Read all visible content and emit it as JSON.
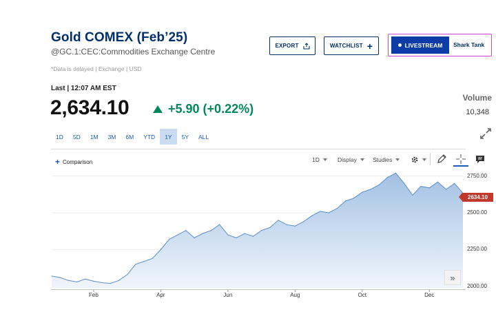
{
  "header": {
    "title": "Gold COMEX (Feb’25)",
    "subtitle": "@GC.1:CEC:Commodities Exchange Centre",
    "delay_note": "*Data is delayed | Exchange | USD"
  },
  "actions": {
    "export_label": "EXPORT",
    "watchlist_label": "WATCHLIST",
    "livestream_label": "LIVESTREAM",
    "show_label": "Shark Tank"
  },
  "quote": {
    "last_label": "Last | 12:07 AM EST",
    "price": "2,634.10",
    "change": "+5.90 (+0.22%)",
    "volume_label": "Volume",
    "volume_value": "10,348"
  },
  "ranges": {
    "items": [
      "1D",
      "5D",
      "1M",
      "3M",
      "6M",
      "YTD",
      "1Y",
      "5Y",
      "ALL"
    ],
    "active": "1Y"
  },
  "toolbar": {
    "comparison_label": "Comparison",
    "interval_label": "1D",
    "display_label": "Display",
    "studies_label": "Studies"
  },
  "colors": {
    "brand": "#002f6c",
    "positive": "#00875a",
    "accent": "#1a5bb8",
    "price_flag": "#c0392b",
    "series_line": "#5b8fc9"
  },
  "chart_data": {
    "type": "area",
    "x": [
      "Jan",
      "Jan",
      "Jan",
      "Jan",
      "Jan",
      "Feb",
      "Feb",
      "Feb",
      "Feb",
      "Mar",
      "Mar",
      "Mar",
      "Mar",
      "Apr",
      "Apr",
      "Apr",
      "Apr",
      "May",
      "May",
      "May",
      "May",
      "Jun",
      "Jun",
      "Jun",
      "Jun",
      "Jul",
      "Jul",
      "Jul",
      "Jul",
      "Aug",
      "Aug",
      "Aug",
      "Aug",
      "Sep",
      "Sep",
      "Sep",
      "Sep",
      "Oct",
      "Oct",
      "Oct",
      "Oct",
      "Nov",
      "Nov",
      "Nov",
      "Nov",
      "Dec",
      "Dec",
      "Dec",
      "Dec",
      "Dec"
    ],
    "values": [
      2070,
      2060,
      2040,
      2030,
      2050,
      2035,
      2025,
      2020,
      2040,
      2080,
      2150,
      2170,
      2190,
      2250,
      2320,
      2350,
      2380,
      2330,
      2360,
      2380,
      2420,
      2350,
      2330,
      2360,
      2340,
      2380,
      2400,
      2450,
      2420,
      2410,
      2440,
      2480,
      2510,
      2500,
      2530,
      2580,
      2600,
      2640,
      2660,
      2690,
      2740,
      2770,
      2700,
      2620,
      2680,
      2670,
      2710,
      2660,
      2700,
      2634.1
    ],
    "tick_labels_x": [
      "Feb",
      "Apr",
      "Jun",
      "Aug",
      "Oct",
      "Dec"
    ],
    "tick_labels_y": [
      "2750.00",
      "2500.00",
      "2250.00",
      "2000.00"
    ],
    "last_value_label": "2634.10",
    "ylim": [
      1990,
      2800
    ],
    "grid": true
  }
}
